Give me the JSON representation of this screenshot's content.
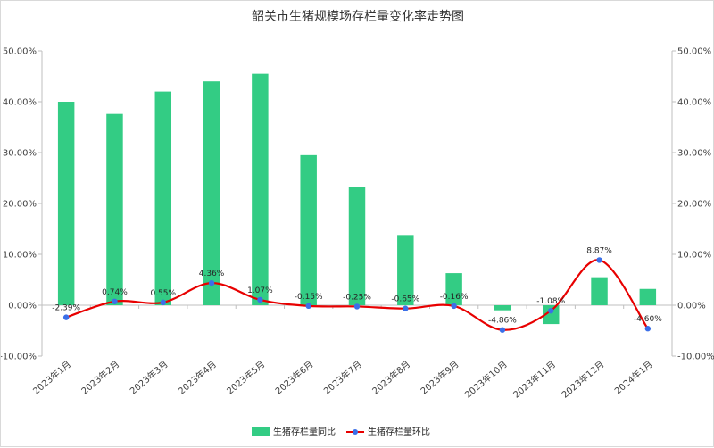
{
  "chart_data": {
    "type": "bar+line",
    "title": "韶关市生猪规模场存栏量变化率走势图",
    "categories": [
      "2023年1月",
      "2023年2月",
      "2023年3月",
      "2023年4月",
      "2023年5月",
      "2023年6月",
      "2023年7月",
      "2023年8月",
      "2023年9月",
      "2023年10月",
      "2023年11月",
      "2023年12月",
      "2024年1月"
    ],
    "series": [
      {
        "name": "生猪存栏量同比",
        "type": "bar",
        "axis": "left",
        "color": "#33cc84",
        "values": [
          40.0,
          37.6,
          42.0,
          44.0,
          45.5,
          29.5,
          23.3,
          13.8,
          6.3,
          -1.0,
          -3.7,
          5.5,
          3.2
        ]
      },
      {
        "name": "生猪存栏量环比",
        "type": "line",
        "axis": "right",
        "color": "#e80000",
        "marker_color": "#3b6fe8",
        "values": [
          -2.39,
          0.74,
          0.55,
          4.36,
          1.07,
          -0.15,
          -0.25,
          -0.65,
          -0.16,
          -4.86,
          -1.08,
          8.87,
          -4.6
        ],
        "labels": [
          "-2.39%",
          "0.74%",
          "0.55%",
          "4.36%",
          "1.07%",
          "-0.15%",
          "-0.25%",
          "-0.65%",
          "-0.16%",
          "-4.86%",
          "-1.08%",
          "8.87%",
          "-4.60%"
        ]
      }
    ],
    "y_left": {
      "min": -10,
      "max": 50,
      "ticks": [
        50,
        40,
        30,
        20,
        10,
        0,
        -10
      ],
      "tick_labels": [
        "50.00%",
        "40.00%",
        "30.00%",
        "20.00%",
        "10.00%",
        "0.00%",
        "-10.00%"
      ]
    },
    "y_right": {
      "min": -10,
      "max": 50,
      "ticks": [
        50,
        40,
        30,
        20,
        10,
        0,
        -10
      ],
      "tick_labels": [
        "50.00%",
        "40.00%",
        "30.00%",
        "20.00%",
        "10.00%",
        "0.00%",
        "-10.00%"
      ]
    },
    "grid": false,
    "legend_position": "bottom"
  }
}
